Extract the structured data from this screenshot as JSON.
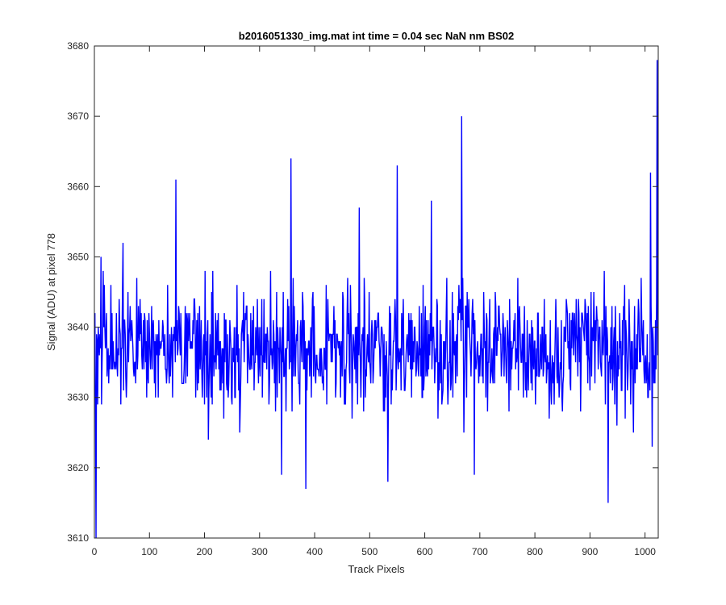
{
  "chart_data": {
    "type": "line",
    "title": "b2016051330_img.mat int time = 0.04 sec  NaN nm BS02",
    "xlabel": "Track Pixels",
    "ylabel": "Signal (ADU) at pixel 778",
    "xlim": [
      0,
      1024
    ],
    "ylim": [
      3610,
      3680
    ],
    "xticks": [
      0,
      100,
      200,
      300,
      400,
      500,
      600,
      700,
      800,
      900,
      1000
    ],
    "yticks": [
      3610,
      3620,
      3630,
      3640,
      3650,
      3660,
      3670,
      3680
    ],
    "grid": false,
    "series": [
      {
        "color": "#0000ff",
        "x_start": 1,
        "x_step": 1,
        "peaks_note_free": true,
        "noise_seed": 20160513,
        "baseline": 3637,
        "spikes": [
          {
            "x": 3,
            "y": 3610
          },
          {
            "x": 12,
            "y": 3650
          },
          {
            "x": 52,
            "y": 3652
          },
          {
            "x": 148,
            "y": 3661
          },
          {
            "x": 207,
            "y": 3624
          },
          {
            "x": 340,
            "y": 3619
          },
          {
            "x": 357,
            "y": 3664
          },
          {
            "x": 384,
            "y": 3617
          },
          {
            "x": 481,
            "y": 3657
          },
          {
            "x": 533,
            "y": 3618
          },
          {
            "x": 550,
            "y": 3663
          },
          {
            "x": 612,
            "y": 3658
          },
          {
            "x": 667,
            "y": 3670
          },
          {
            "x": 690,
            "y": 3619
          },
          {
            "x": 933,
            "y": 3615
          },
          {
            "x": 1010,
            "y": 3662
          },
          {
            "x": 1013,
            "y": 3623
          },
          {
            "x": 1022,
            "y": 3678
          }
        ]
      }
    ]
  }
}
